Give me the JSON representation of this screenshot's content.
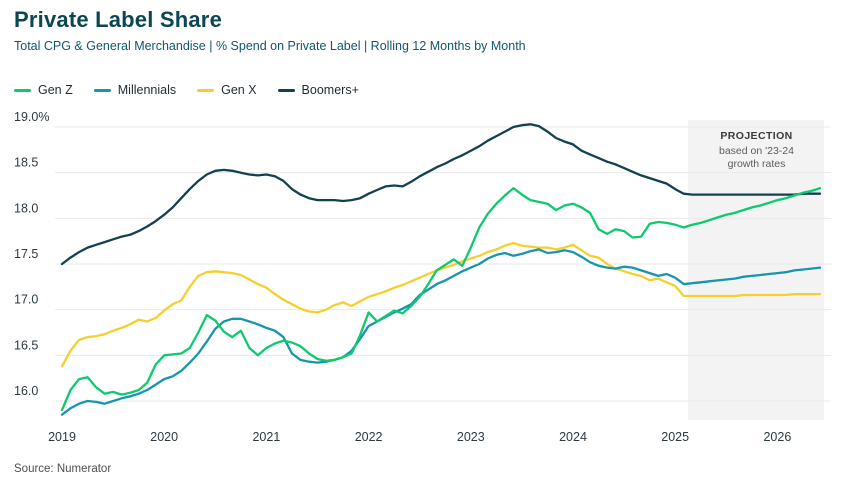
{
  "header": {
    "title": "Private Label Share",
    "subtitle": "Total CPG & General Merchandise | % Spend on Private Label | Rolling 12 Months by Month"
  },
  "source": "Source: Numerator",
  "projection": {
    "line1": "PROJECTION",
    "line2": "based on '23-24",
    "line3": "growth rates",
    "box_color": "#f3f3f3"
  },
  "colors": {
    "gen_z": "#0fc96f",
    "millennials": "#1795ad",
    "gen_x": "#f6cf2e",
    "boomers": "#12414f",
    "gridline": "#e9eaea",
    "axis_text": "#2c3a42"
  },
  "legend": {
    "items": [
      {
        "label": "Gen Z",
        "color": "#0fc96f"
      },
      {
        "label": "Millennials",
        "color": "#1795ad"
      },
      {
        "label": "Gen X",
        "color": "#f6cf2e"
      },
      {
        "label": "Boomers+",
        "color": "#12414f"
      }
    ]
  },
  "chart_data": {
    "type": "line",
    "title": "Private Label Share",
    "subtitle": "Total CPG & General Merchandise | % Spend on Private Label | Rolling 12 Months by Month",
    "unit": "%",
    "grid": true,
    "legend_position": "top",
    "x_start_month": "2019-01",
    "x_end_month": "2026-06",
    "projection_start_month": "2025-03",
    "x_tick_labels": [
      "2019",
      "2020",
      "2021",
      "2022",
      "2023",
      "2024",
      "2025",
      "2026"
    ],
    "y_axis": {
      "min": 16.0,
      "max": 19.0,
      "tick_values": [
        19.0,
        18.5,
        18.0,
        17.5,
        17.0,
        16.5,
        16.0
      ],
      "tick_labels": [
        "19.0%",
        "18.5",
        "18.0",
        "17.5",
        "17.0",
        "16.5",
        "16.0"
      ]
    },
    "series": [
      {
        "name": "Gen Z",
        "color": "#0fc96f",
        "values": [
          15.9,
          16.12,
          16.24,
          16.26,
          16.15,
          16.08,
          16.1,
          16.07,
          16.09,
          16.12,
          16.2,
          16.4,
          16.5,
          16.51,
          16.52,
          16.58,
          16.75,
          16.94,
          16.88,
          16.76,
          16.7,
          16.77,
          16.58,
          16.5,
          16.58,
          16.63,
          16.66,
          16.64,
          16.6,
          16.52,
          16.46,
          16.44,
          16.45,
          16.48,
          16.52,
          16.72,
          16.97,
          16.87,
          16.93,
          16.99,
          16.96,
          17.04,
          17.14,
          17.28,
          17.43,
          17.49,
          17.55,
          17.48,
          17.68,
          17.9,
          18.05,
          18.16,
          18.25,
          18.33,
          18.26,
          18.2,
          18.18,
          18.16,
          18.09,
          18.14,
          18.16,
          18.12,
          18.06,
          17.88,
          17.83,
          17.88,
          17.86,
          17.79,
          17.8,
          17.94,
          17.96,
          17.95,
          17.93,
          17.9,
          17.93,
          17.95,
          17.98,
          18.01,
          18.04,
          18.06,
          18.09,
          18.12,
          18.14,
          18.17,
          18.2,
          18.22,
          18.25,
          18.28,
          18.3,
          18.33
        ]
      },
      {
        "name": "Millennials",
        "color": "#1795ad",
        "values": [
          15.85,
          15.92,
          15.97,
          16.0,
          15.99,
          15.97,
          16.0,
          16.03,
          16.05,
          16.08,
          16.12,
          16.18,
          16.24,
          16.27,
          16.33,
          16.42,
          16.52,
          16.65,
          16.79,
          16.87,
          16.9,
          16.9,
          16.87,
          16.84,
          16.8,
          16.77,
          16.7,
          16.52,
          16.45,
          16.43,
          16.42,
          16.43,
          16.45,
          16.48,
          16.55,
          16.68,
          16.82,
          16.87,
          16.92,
          16.97,
          17.01,
          17.06,
          17.16,
          17.22,
          17.28,
          17.32,
          17.37,
          17.42,
          17.46,
          17.5,
          17.56,
          17.6,
          17.62,
          17.59,
          17.61,
          17.64,
          17.66,
          17.62,
          17.63,
          17.65,
          17.63,
          17.58,
          17.52,
          17.48,
          17.46,
          17.45,
          17.47,
          17.46,
          17.43,
          17.4,
          17.37,
          17.39,
          17.35,
          17.28,
          17.29,
          17.3,
          17.31,
          17.32,
          17.33,
          17.34,
          17.36,
          17.37,
          17.38,
          17.39,
          17.4,
          17.41,
          17.43,
          17.44,
          17.45,
          17.46
        ]
      },
      {
        "name": "Gen X",
        "color": "#f6cf2e",
        "values": [
          16.38,
          16.55,
          16.67,
          16.7,
          16.71,
          16.73,
          16.77,
          16.8,
          16.84,
          16.89,
          16.87,
          16.91,
          16.99,
          17.06,
          17.1,
          17.25,
          17.37,
          17.41,
          17.42,
          17.41,
          17.4,
          17.38,
          17.33,
          17.28,
          17.24,
          17.17,
          17.11,
          17.06,
          17.01,
          16.98,
          16.97,
          17.0,
          17.05,
          17.08,
          17.04,
          17.09,
          17.14,
          17.17,
          17.2,
          17.24,
          17.27,
          17.31,
          17.35,
          17.39,
          17.43,
          17.46,
          17.49,
          17.53,
          17.56,
          17.59,
          17.63,
          17.66,
          17.7,
          17.73,
          17.7,
          17.69,
          17.68,
          17.68,
          17.66,
          17.68,
          17.71,
          17.65,
          17.59,
          17.57,
          17.5,
          17.45,
          17.42,
          17.39,
          17.37,
          17.32,
          17.34,
          17.3,
          17.26,
          17.15,
          17.15,
          17.15,
          17.15,
          17.15,
          17.15,
          17.15,
          17.16,
          17.16,
          17.16,
          17.16,
          17.16,
          17.16,
          17.17,
          17.17,
          17.17,
          17.17
        ]
      },
      {
        "name": "Boomers+",
        "color": "#12414f",
        "values": [
          17.5,
          17.57,
          17.63,
          17.68,
          17.71,
          17.74,
          17.77,
          17.8,
          17.82,
          17.86,
          17.91,
          17.97,
          18.04,
          18.12,
          18.22,
          18.32,
          18.41,
          18.48,
          18.52,
          18.53,
          18.52,
          18.5,
          18.48,
          18.47,
          18.48,
          18.46,
          18.41,
          18.32,
          18.26,
          18.22,
          18.2,
          18.2,
          18.2,
          18.19,
          18.2,
          18.22,
          18.27,
          18.31,
          18.35,
          18.36,
          18.35,
          18.4,
          18.46,
          18.51,
          18.56,
          18.6,
          18.65,
          18.69,
          18.74,
          18.79,
          18.85,
          18.9,
          18.95,
          19.0,
          19.02,
          19.03,
          19.01,
          18.95,
          18.88,
          18.84,
          18.81,
          18.74,
          18.7,
          18.66,
          18.62,
          18.59,
          18.55,
          18.51,
          18.47,
          18.44,
          18.41,
          18.38,
          18.32,
          18.27,
          18.26,
          18.26,
          18.26,
          18.26,
          18.26,
          18.26,
          18.26,
          18.26,
          18.26,
          18.26,
          18.26,
          18.26,
          18.26,
          18.27,
          18.27,
          18.27
        ]
      }
    ]
  }
}
